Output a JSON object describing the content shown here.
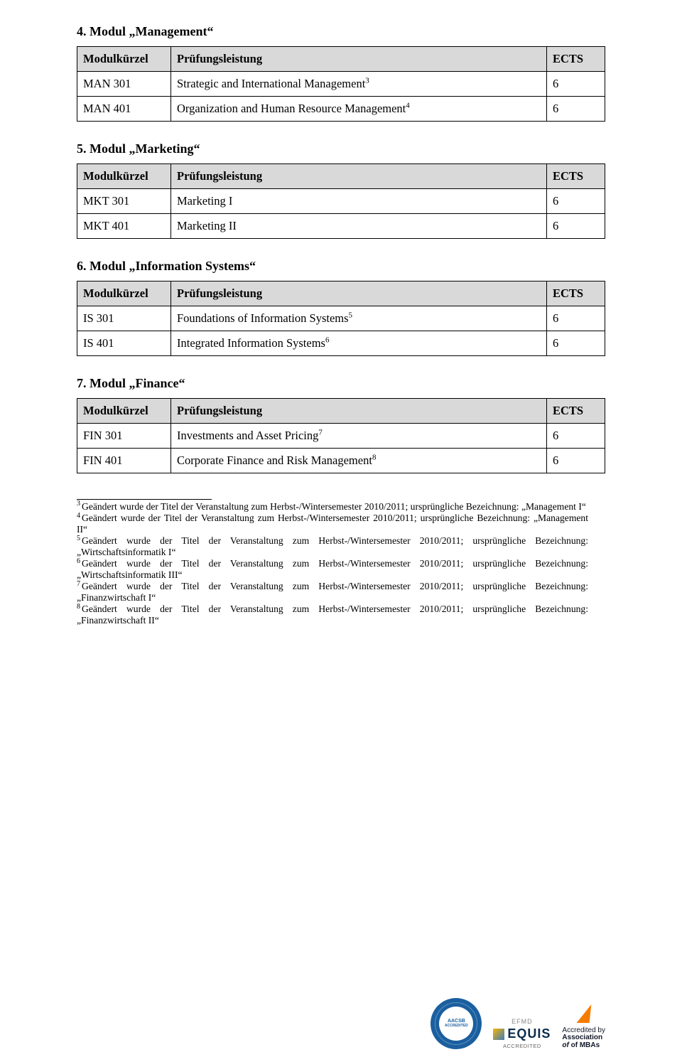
{
  "colors": {
    "header_bg": "#d9d9d9",
    "border": "#000000",
    "text": "#000000",
    "page_bg": "#ffffff",
    "aacsb_blue": "#1b5f9f",
    "amba_orange": "#f57c00",
    "equis_dark": "#0a2d4b"
  },
  "sections": [
    {
      "key": "s4",
      "title": "4. Modul „Management“",
      "headers": [
        "Modulkürzel",
        "Prüfungsleistung",
        "ECTS"
      ],
      "rows": [
        {
          "code": "MAN 301",
          "name": "Strategic and International Management",
          "sup": "3",
          "ects": "6"
        },
        {
          "code": "MAN 401",
          "name": "Organization and Human Resource Management",
          "sup": "4",
          "ects": "6"
        }
      ]
    },
    {
      "key": "s5",
      "title": "5. Modul „Marketing“",
      "headers": [
        "Modulkürzel",
        "Prüfungsleistung",
        "ECTS"
      ],
      "rows": [
        {
          "code": "MKT 301",
          "name": "Marketing I",
          "sup": "",
          "ects": "6"
        },
        {
          "code": "MKT 401",
          "name": "Marketing II",
          "sup": "",
          "ects": "6"
        }
      ]
    },
    {
      "key": "s6",
      "title": "6. Modul „Information Systems“",
      "headers": [
        "Modulkürzel",
        "Prüfungsleistung",
        "ECTS"
      ],
      "rows": [
        {
          "code": "IS 301",
          "name": "Foundations of Information Systems",
          "sup": "5",
          "ects": "6"
        },
        {
          "code": "IS 401",
          "name": "Integrated Information Systems",
          "sup": "6",
          "ects": "6"
        }
      ]
    },
    {
      "key": "s7",
      "title": "7. Modul „Finance“",
      "headers": [
        "Modulkürzel",
        "Prüfungsleistung",
        "ECTS"
      ],
      "rows": [
        {
          "code": "FIN 301",
          "name": "Investments and Asset Pricing",
          "sup": "7",
          "ects": "6"
        },
        {
          "code": "FIN 401",
          "name": "Corporate Finance and Risk Management",
          "sup": "8",
          "ects": "6"
        }
      ]
    }
  ],
  "footnotes": [
    {
      "n": "3",
      "text": "Geändert wurde der Titel der Veranstaltung zum Herbst-/Wintersemester 2010/2011; ursprüngliche Bezeichnung: „Management I“"
    },
    {
      "n": "4",
      "text": "Geändert wurde der Titel der Veranstaltung zum Herbst-/Wintersemester 2010/2011; ursprüngliche Bezeichnung: „Management II“"
    },
    {
      "n": "5",
      "text": "Geändert wurde der Titel der Veranstaltung zum Herbst-/Wintersemester 2010/2011; ursprüngliche Bezeichnung: „Wirtschaftsinformatik I“"
    },
    {
      "n": "6",
      "text": "Geändert wurde der Titel der Veranstaltung zum Herbst-/Wintersemester 2010/2011; ursprüngliche Bezeichnung: „Wirtschaftsinformatik III“"
    },
    {
      "n": "7",
      "text": "Geändert wurde der Titel der Veranstaltung zum Herbst-/Wintersemester 2010/2011; ursprüngliche Bezeichnung: „Finanzwirtschaft I“"
    },
    {
      "n": "8",
      "text": "Geändert wurde der Titel der Veranstaltung zum Herbst-/Wintersemester 2010/2011; ursprüngliche Bezeichnung: „Finanzwirtschaft II“"
    }
  ],
  "logos": {
    "aacsb": {
      "line1": "AACSB",
      "line2": "ACCREDITED"
    },
    "equis": {
      "top": "EFMD",
      "name": "EQUIS",
      "sub": "ACCREDITED"
    },
    "amba": {
      "l1": "Accredited by",
      "l2": "Association",
      "l3": "of MBAs"
    }
  }
}
